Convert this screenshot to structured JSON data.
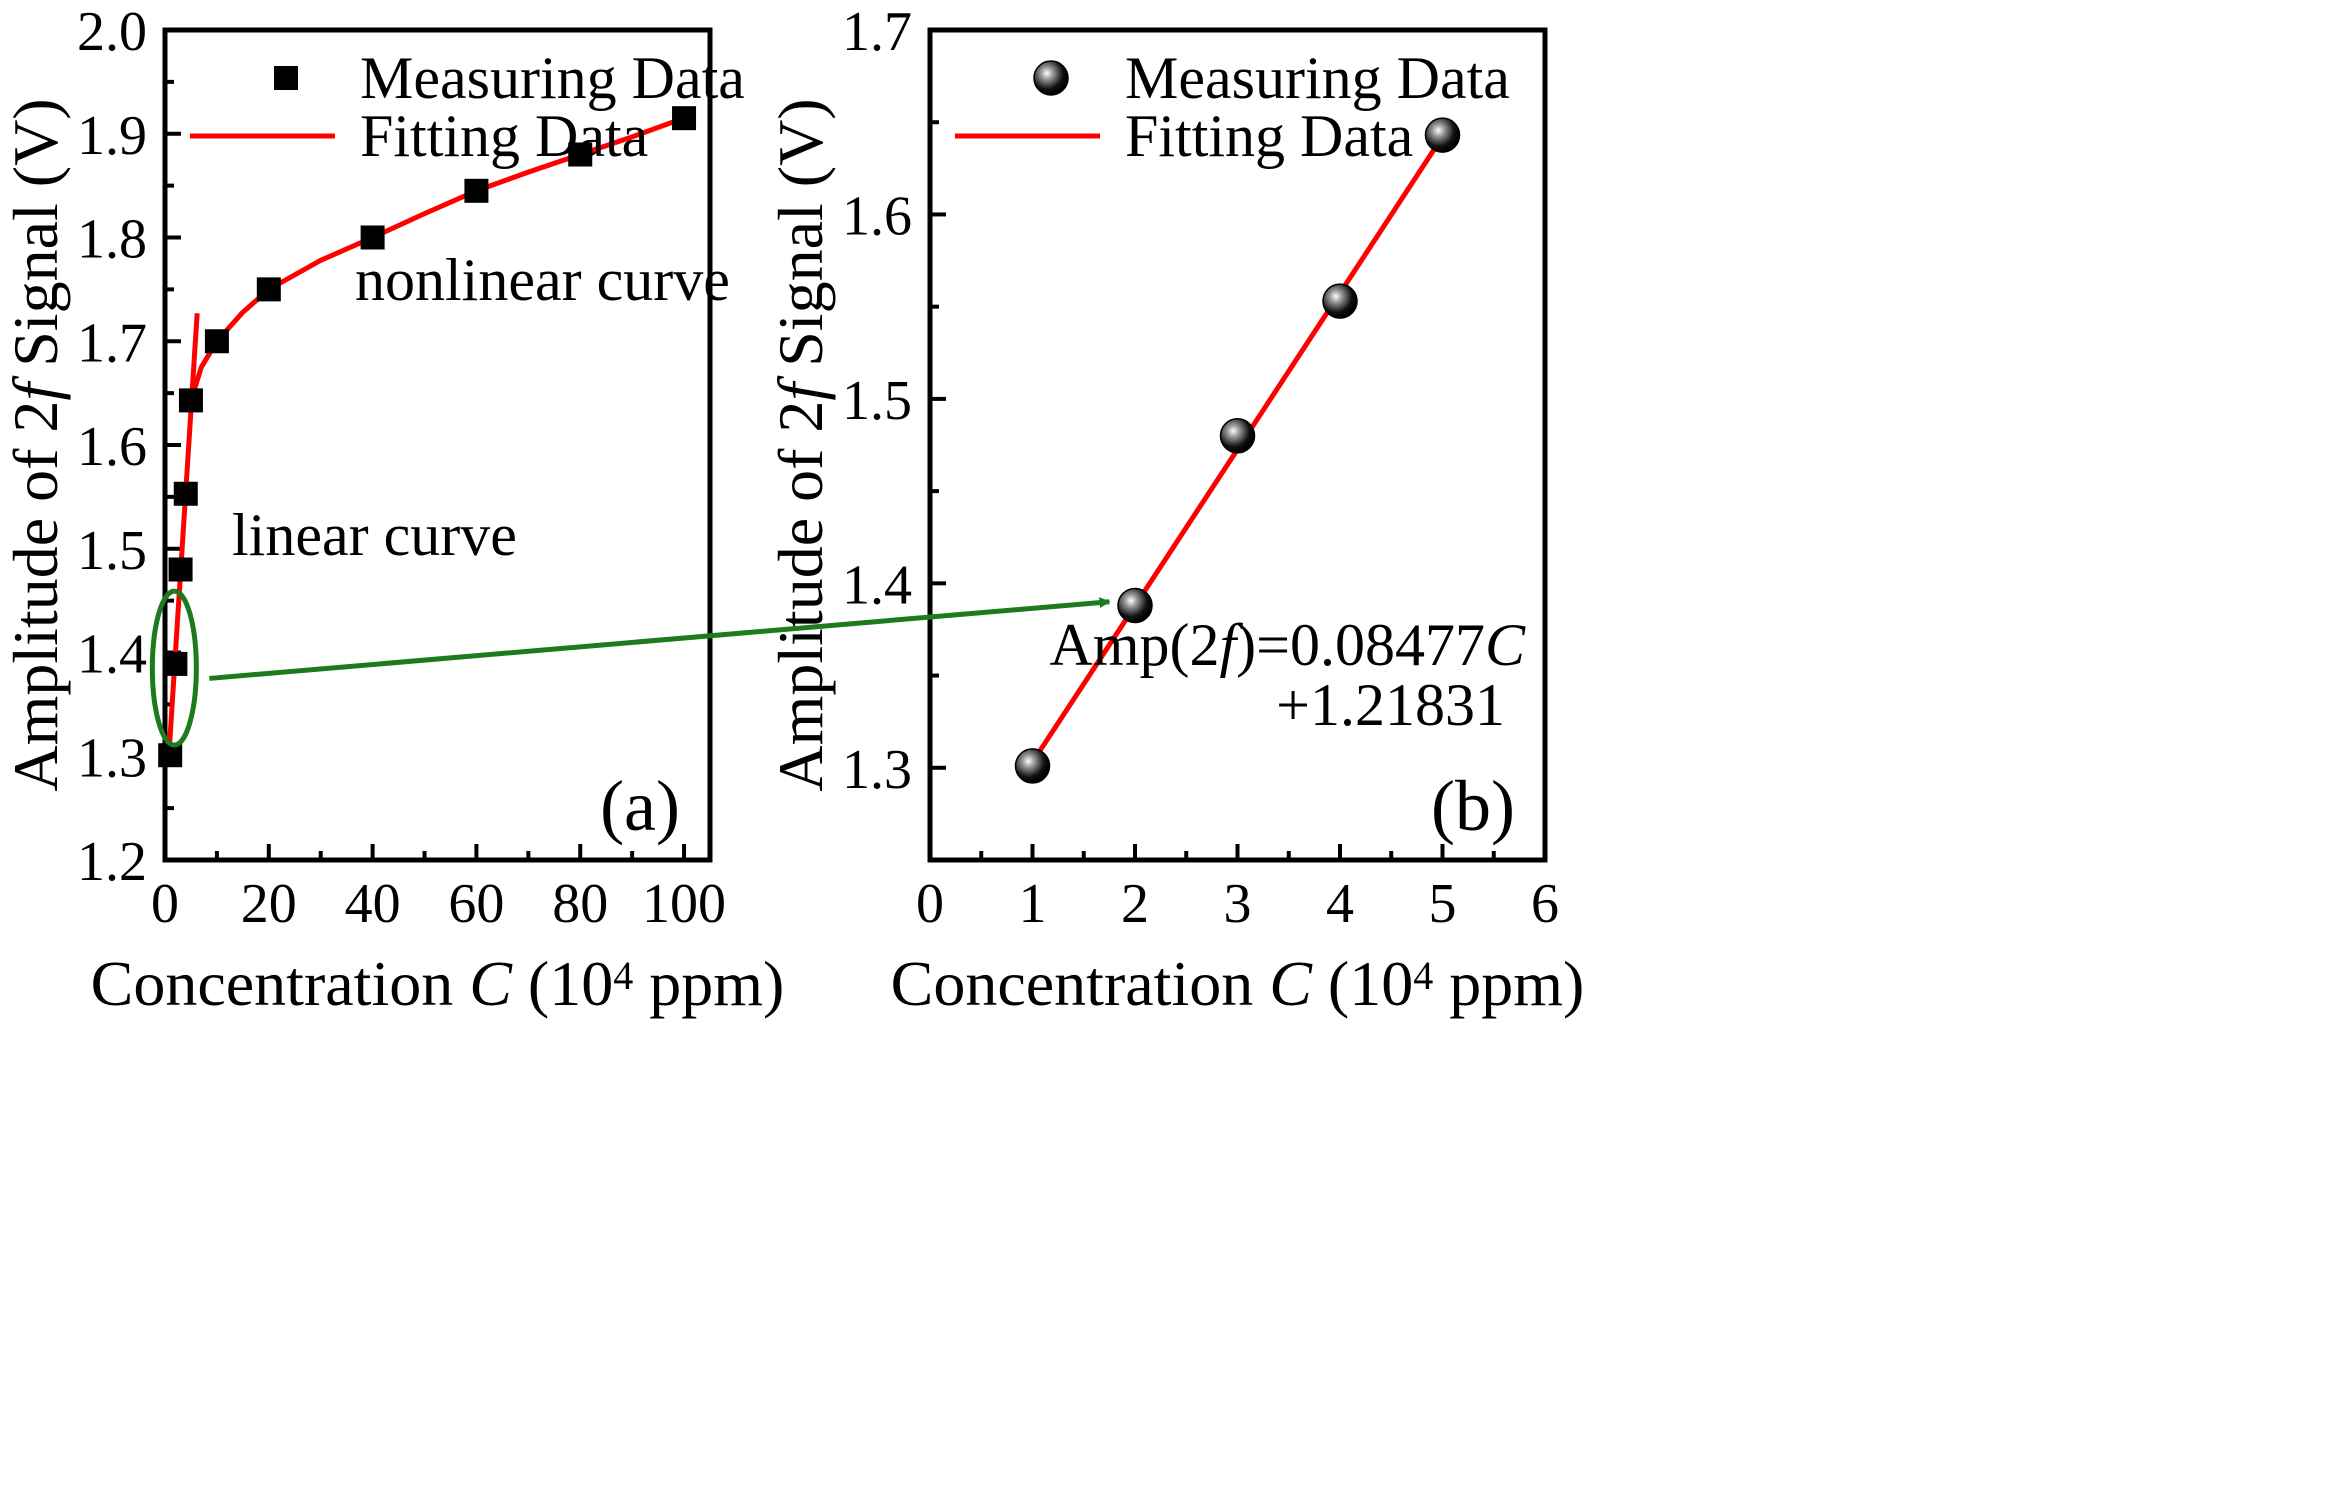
{
  "chart_data": [
    {
      "type": "scatter",
      "panel_label": "(a)",
      "xlabel_parts": [
        "Concentration ",
        "C",
        " (10",
        "4",
        " ppm)"
      ],
      "ylabel_parts": [
        "Amplitude of 2",
        "f",
        " Signal (V)"
      ],
      "xlim": [
        0,
        105
      ],
      "ylim": [
        1.2,
        2.0
      ],
      "xticks": [
        0,
        20,
        40,
        60,
        80,
        100
      ],
      "yticks": [
        1.2,
        1.3,
        1.4,
        1.5,
        1.6,
        1.7,
        1.8,
        1.9,
        2.0
      ],
      "xtick_labels": [
        "0",
        "20",
        "40",
        "60",
        "80",
        "100"
      ],
      "ytick_labels": [
        "1.2",
        "1.3",
        "1.4",
        "1.5",
        "1.6",
        "1.7",
        "1.8",
        "1.9",
        "2.0"
      ],
      "legend_position": "top-left",
      "series": [
        {
          "name": "Measuring Data",
          "kind": "marker-square",
          "color": "#000000",
          "x": [
            1,
            2,
            3,
            4,
            5,
            10,
            20,
            40,
            60,
            80,
            100
          ],
          "y": [
            1.301,
            1.389,
            1.48,
            1.553,
            1.643,
            1.7,
            1.75,
            1.8,
            1.845,
            1.88,
            1.915
          ]
        },
        {
          "name": "Fitting Data",
          "kind": "line",
          "color": "#ff0000",
          "segments": [
            {
              "x": [
                0.8,
                6.2
              ],
              "y": [
                1.305,
                1.727
              ]
            },
            {
              "x": [
                5.0,
                7.0,
                10.0,
                15.0,
                20.0,
                30.0,
                40.0,
                50.0,
                60.0,
                70.0,
                80.0,
                90.0,
                101.0
              ],
              "y": [
                1.643,
                1.675,
                1.7,
                1.728,
                1.75,
                1.778,
                1.8,
                1.823,
                1.845,
                1.863,
                1.88,
                1.897,
                1.917
              ]
            }
          ]
        }
      ],
      "annotations": [
        "nonlinear curve",
        "linear curve"
      ],
      "highlight_color": "#1e7a1e"
    },
    {
      "type": "scatter",
      "panel_label": "(b)",
      "xlabel_parts": [
        "Concentration ",
        "C",
        " (10",
        "4",
        " ppm)"
      ],
      "ylabel_parts": [
        "Amplitude of 2",
        "f",
        " Signal (V)"
      ],
      "xlim": [
        0,
        6
      ],
      "ylim": [
        1.25,
        1.7
      ],
      "xticks": [
        0,
        1,
        2,
        3,
        4,
        5,
        6
      ],
      "yticks": [
        1.3,
        1.4,
        1.5,
        1.6,
        1.7
      ],
      "xtick_labels": [
        "0",
        "1",
        "2",
        "3",
        "4",
        "5",
        "6"
      ],
      "ytick_labels": [
        "1.3",
        "1.4",
        "1.5",
        "1.6",
        "1.7"
      ],
      "legend_position": "top-left",
      "series": [
        {
          "name": "Measuring Data",
          "kind": "marker-sphere",
          "color": "#000000",
          "x": [
            1,
            2,
            3,
            4,
            5
          ],
          "y": [
            1.301,
            1.388,
            1.48,
            1.553,
            1.643
          ]
        },
        {
          "name": "Fitting Data",
          "kind": "line",
          "color": "#ff0000",
          "segments": [
            {
              "x": [
                1,
                5
              ],
              "y": [
                1.30308,
                1.64216
              ]
            }
          ]
        }
      ],
      "equation": {
        "line1_parts": [
          "Amp(2",
          "f",
          ")=0.08477",
          "C"
        ],
        "line2": "+1.21831"
      }
    }
  ]
}
